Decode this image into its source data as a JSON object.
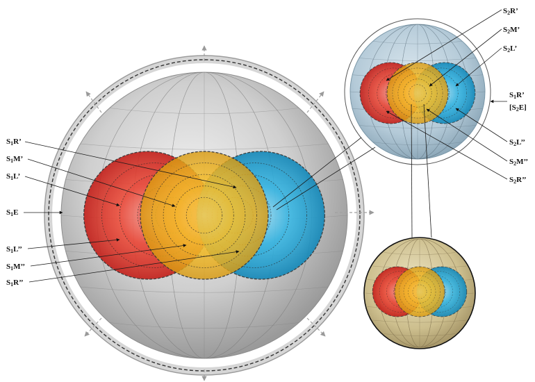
{
  "colors": {
    "red": "#e0332b",
    "yellow": "#f2b51c",
    "blue": "#1fa6d8",
    "sphere_gray": "#c8c8c8",
    "small_sphere_blue": "#b9cfdc",
    "zoom_sphere_tan": "#cdbf8e",
    "text": "#111111"
  },
  "icons": [
    "arrow-up-icon",
    "arrow-down-icon",
    "arrow-left-icon",
    "arrow-right-icon",
    "arrow-diagonal-icon"
  ],
  "main_sphere": {
    "labels": [
      {
        "id": "s1r1",
        "main": "S",
        "sub": "1",
        "rest": "R’"
      },
      {
        "id": "s1m1",
        "main": "S",
        "sub": "1",
        "rest": "M’"
      },
      {
        "id": "s1l1",
        "main": "S",
        "sub": "1",
        "rest": "L’"
      },
      {
        "id": "s1e",
        "main": "S",
        "sub": "1",
        "rest": "E"
      },
      {
        "id": "s1l2",
        "main": "S",
        "sub": "1",
        "rest": "L’’"
      },
      {
        "id": "s1m2",
        "main": "S",
        "sub": "1",
        "rest": "M’’"
      },
      {
        "id": "s1r2",
        "main": "S",
        "sub": "1",
        "rest": "R’’"
      }
    ]
  },
  "small_sphere": {
    "labels": [
      {
        "id": "s2r1",
        "main": "S",
        "sub": "2",
        "rest": "R’"
      },
      {
        "id": "s2m1",
        "main": "S",
        "sub": "2",
        "rest": "M’"
      },
      {
        "id": "s2l1",
        "main": "S",
        "sub": "2",
        "rest": "L’"
      },
      {
        "id": "s1r1b",
        "main": "S",
        "sub": "1",
        "rest": "R’"
      },
      {
        "id": "s2e",
        "main": "[S",
        "sub": "2",
        "rest": "E]"
      },
      {
        "id": "s2l2",
        "main": "S",
        "sub": "2",
        "rest": "L’’"
      },
      {
        "id": "s2m2",
        "main": "S",
        "sub": "2",
        "rest": "M’’"
      },
      {
        "id": "s2r2",
        "main": "S",
        "sub": "2",
        "rest": "R’’"
      }
    ]
  }
}
